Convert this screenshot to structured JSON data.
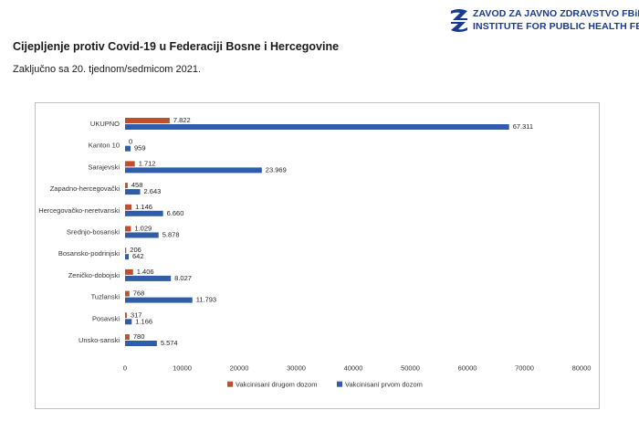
{
  "header": {
    "logo_line1": "ZAVOD ZA JAVNO ZDRAVSTVO FBiH",
    "logo_line2": "INSTITUTE FOR PUBLIC HEALTH FB&H",
    "title": "Cijepljenje protiv Covid-19 u Federaciji Bosne i Hercegovine",
    "subtitle": "Zaključno sa 20. tjednom/sedmicom 2021."
  },
  "colors": {
    "second_dose": "#c0502b",
    "first_dose": "#2f5da8",
    "logo": "#1a3a8f"
  },
  "chart_data": {
    "type": "bar",
    "orientation": "horizontal",
    "categories": [
      "UKUPNO",
      "Kanton 10",
      "Sarajevski",
      "Zapadno-hercegovački",
      "Hercegovačko-neretvanski",
      "Srednjo-bosanski",
      "Bosansko-podrinjski",
      "Zeničko-dobojski",
      "Tuzlanski",
      "Posavski",
      "Unsko-sanski"
    ],
    "series": [
      {
        "name": "Vakcinisani drugom dozom",
        "values": [
          7822,
          0,
          1712,
          458,
          1146,
          1029,
          206,
          1406,
          768,
          317,
          780
        ],
        "labels": [
          "7.822",
          "0",
          "1.712",
          "458",
          "1.146",
          "1.029",
          "206",
          "1.406",
          "768",
          "317",
          "780"
        ]
      },
      {
        "name": "Vakcinisani prvom dozom",
        "values": [
          67311,
          959,
          23969,
          2643,
          6660,
          5878,
          642,
          8027,
          11793,
          1166,
          5574
        ],
        "labels": [
          "67.311",
          "959",
          "23.969",
          "2.643",
          "6.660",
          "5.878",
          "642",
          "8.027",
          "11.793",
          "1.166",
          "5.574"
        ]
      }
    ],
    "xlim": [
      0,
      80000
    ],
    "xticks": [
      "0",
      "10000",
      "20000",
      "30000",
      "40000",
      "50000",
      "60000",
      "70000",
      "80000"
    ],
    "legend_position": "bottom"
  }
}
